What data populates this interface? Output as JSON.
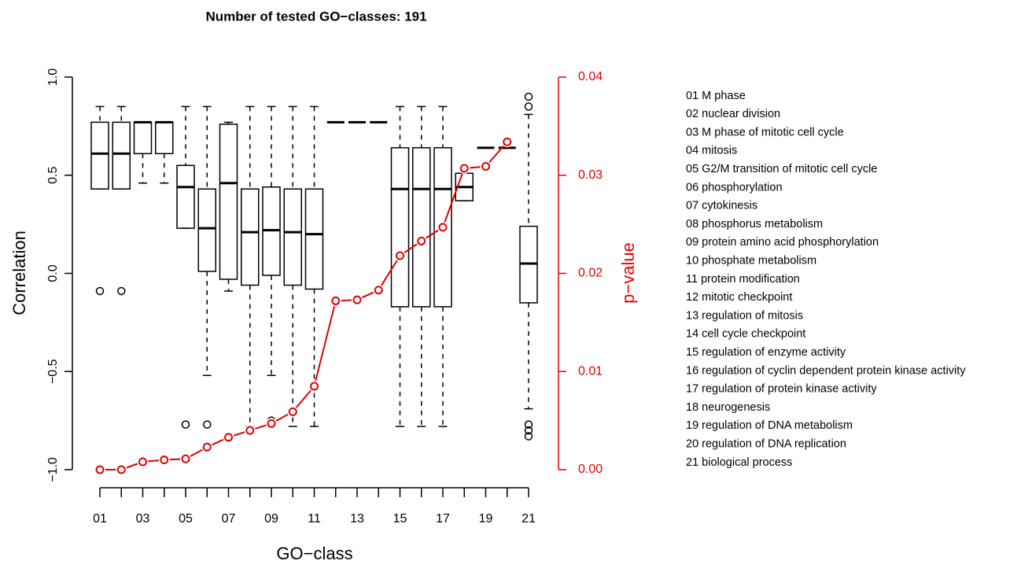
{
  "chart_data": {
    "type": "box",
    "title": "Number of tested GO−classes: 191",
    "x_label": "GO−class",
    "y_label": "Correlation",
    "y2_label": "p−value",
    "categories": [
      "01",
      null,
      "03",
      null,
      "05",
      null,
      "07",
      null,
      "09",
      null,
      "11",
      null,
      "13",
      null,
      "15",
      null,
      "17",
      null,
      "19",
      null,
      "21"
    ],
    "class_names": [
      "01 M phase",
      "02 nuclear division",
      "03 M phase of mitotic cell cycle",
      "04 mitosis",
      "05 G2/M transition of mitotic cell cycle",
      "06 phosphorylation",
      "07 cytokinesis",
      "08 phosphorus metabolism",
      "09 protein amino acid phosphorylation",
      "10 phosphate metabolism",
      "11 protein modification",
      "12 mitotic checkpoint",
      "13 regulation of mitosis",
      "14 cell cycle checkpoint",
      "15 regulation of enzyme activity",
      "16 regulation of cyclin dependent protein kinase activity",
      "17 regulation of protein kinase activity",
      "18 neurogenesis",
      "19 regulation of DNA metabolism",
      "20 regulation of DNA replication",
      "21 biological process"
    ],
    "boxes": [
      {
        "low": 0.43,
        "q1": 0.43,
        "median": 0.61,
        "q3": 0.77,
        "high": 0.85,
        "outliers": [
          -0.09
        ]
      },
      {
        "low": 0.43,
        "q1": 0.43,
        "median": 0.61,
        "q3": 0.77,
        "high": 0.85,
        "outliers": [
          -0.09
        ]
      },
      {
        "low": 0.46,
        "q1": 0.61,
        "median": 0.77,
        "q3": 0.77,
        "high": 0.77,
        "outliers": []
      },
      {
        "low": 0.46,
        "q1": 0.61,
        "median": 0.77,
        "q3": 0.77,
        "high": 0.77,
        "outliers": []
      },
      {
        "low": 0.23,
        "q1": 0.23,
        "median": 0.44,
        "q3": 0.55,
        "high": 0.85,
        "outliers": [
          -0.77
        ]
      },
      {
        "low": -0.52,
        "q1": 0.01,
        "median": 0.23,
        "q3": 0.43,
        "high": 0.85,
        "outliers": [
          -0.77
        ]
      },
      {
        "low": -0.09,
        "q1": -0.03,
        "median": 0.46,
        "q3": 0.76,
        "high": 0.77,
        "outliers": []
      },
      {
        "low": -0.78,
        "q1": -0.06,
        "median": 0.21,
        "q3": 0.43,
        "high": 0.85,
        "outliers": []
      },
      {
        "low": -0.52,
        "q1": -0.01,
        "median": 0.22,
        "q3": 0.44,
        "high": 0.85,
        "outliers": [
          -0.77,
          -0.75
        ]
      },
      {
        "low": -0.78,
        "q1": -0.06,
        "median": 0.21,
        "q3": 0.43,
        "high": 0.85,
        "outliers": []
      },
      {
        "low": -0.78,
        "q1": -0.08,
        "median": 0.2,
        "q3": 0.43,
        "high": 0.85,
        "outliers": []
      },
      {
        "low": 0.77,
        "q1": 0.77,
        "median": 0.77,
        "q3": 0.77,
        "high": 0.77,
        "outliers": []
      },
      {
        "low": 0.77,
        "q1": 0.77,
        "median": 0.77,
        "q3": 0.77,
        "high": 0.77,
        "outliers": []
      },
      {
        "low": 0.77,
        "q1": 0.77,
        "median": 0.77,
        "q3": 0.77,
        "high": 0.77,
        "outliers": []
      },
      {
        "low": -0.78,
        "q1": -0.17,
        "median": 0.43,
        "q3": 0.64,
        "high": 0.85,
        "outliers": []
      },
      {
        "low": -0.78,
        "q1": -0.17,
        "median": 0.43,
        "q3": 0.64,
        "high": 0.85,
        "outliers": []
      },
      {
        "low": -0.78,
        "q1": -0.17,
        "median": 0.43,
        "q3": 0.64,
        "high": 0.85,
        "outliers": []
      },
      {
        "low": 0.37,
        "q1": 0.37,
        "median": 0.44,
        "q3": 0.51,
        "high": 0.51,
        "outliers": []
      },
      {
        "low": 0.64,
        "q1": 0.64,
        "median": 0.64,
        "q3": 0.64,
        "high": 0.64,
        "outliers": []
      },
      {
        "low": 0.64,
        "q1": 0.64,
        "median": 0.64,
        "q3": 0.64,
        "high": 0.64,
        "outliers": []
      },
      {
        "low": -0.69,
        "q1": -0.15,
        "median": 0.05,
        "q3": 0.24,
        "high": 0.81,
        "outliers": [
          0.9,
          0.85,
          -0.77,
          -0.8,
          -0.83
        ]
      }
    ],
    "pvalues": {
      "axis": "y2",
      "color": "#e00000",
      "values": [
        0.0,
        0.0,
        0.0008,
        0.001,
        0.0011,
        0.0023,
        0.0033,
        0.004,
        0.0047,
        0.0059,
        0.0085,
        0.0172,
        0.0173,
        0.0183,
        0.0218,
        0.0233,
        0.0247,
        0.0307,
        0.0309,
        0.0334,
        null
      ]
    },
    "ylim": [
      -1,
      1
    ],
    "yticks": [
      {
        "value": -1,
        "label": "−1.0"
      },
      {
        "value": -0.5,
        "label": "−0.5"
      },
      {
        "value": 0,
        "label": "0.0"
      },
      0.5,
      {
        "value": 1,
        "label": "1.0"
      }
    ],
    "y2lim": [
      0,
      0.04
    ],
    "y2ticks": [
      {
        "value": 0,
        "label": "0.00"
      },
      0.01,
      0.02,
      0.03,
      0.04
    ]
  }
}
